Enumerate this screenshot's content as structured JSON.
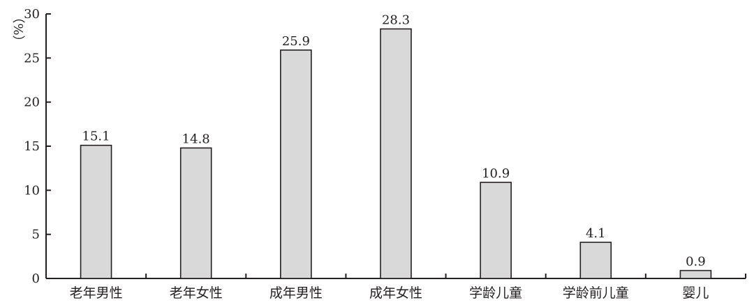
{
  "chart_data": {
    "type": "bar",
    "title": "",
    "xlabel": "",
    "ylabel": "（%）",
    "categories": [
      "老年男性",
      "老年女性",
      "成年男性",
      "成年女性",
      "学龄儿童",
      "学龄前儿童",
      "婴儿"
    ],
    "values": [
      15.1,
      14.8,
      25.9,
      28.3,
      10.9,
      4.1,
      0.9
    ],
    "data_labels": [
      "15.1",
      "14.8",
      "25.9",
      "28.3",
      "10.9",
      "4.1",
      "0.9"
    ],
    "ylim": [
      0,
      30
    ],
    "yticks": [
      0,
      5,
      10,
      15,
      20,
      25,
      30
    ],
    "ytick_labels": [
      "0",
      "5",
      "10",
      "15",
      "20",
      "25",
      "30"
    ],
    "grid": false,
    "legend": "none",
    "colors": {
      "bar_fill": "#d9d9d9",
      "bar_stroke": "#231f20",
      "axis": "#231f20",
      "text": "#231f20"
    }
  }
}
